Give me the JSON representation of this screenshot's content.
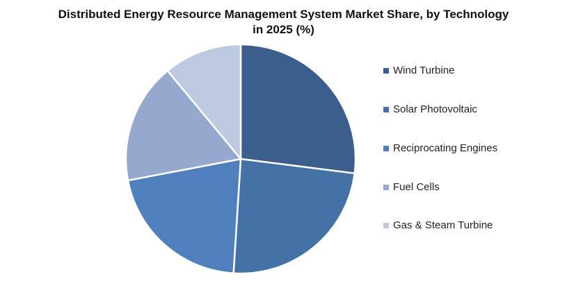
{
  "chart_data": {
    "type": "pie",
    "title_lines": [
      "Distributed Energy Resource Management System Market Share, by Technology",
      "in 2025 (%)"
    ],
    "slices": [
      {
        "label": "Wind Turbine",
        "value": 27,
        "color": "#3b5e8c"
      },
      {
        "label": "Solar Photovoltaic",
        "value": 24,
        "color": "#4471a6"
      },
      {
        "label": "Reciprocating Engines",
        "value": 21,
        "color": "#4f80bd"
      },
      {
        "label": "Fuel Cells",
        "value": 17,
        "color": "#95a9cf"
      },
      {
        "label": "Gas & Steam Turbine",
        "value": 11,
        "color": "#bcc9e1"
      }
    ],
    "legend_position": "right"
  }
}
